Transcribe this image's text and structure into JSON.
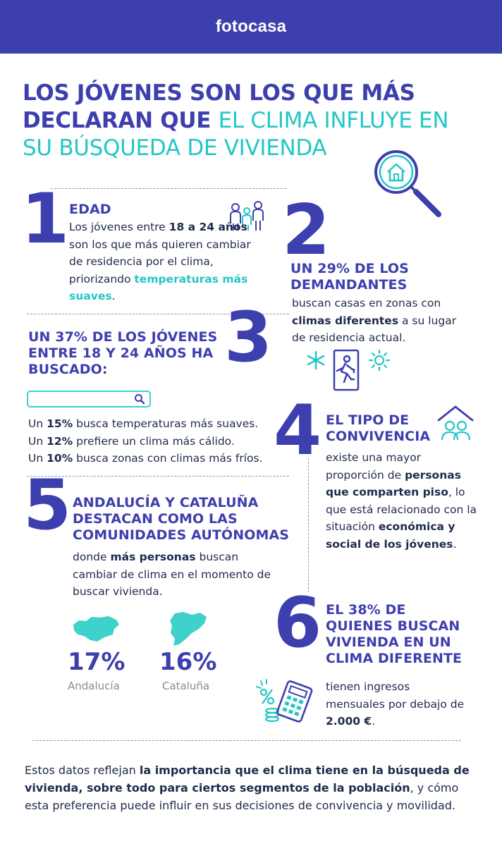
{
  "header": {
    "brand": "fotocasa"
  },
  "title": {
    "part1": "LOS JÓVENES SON LOS QUE MÁS DECLARAN QUE ",
    "part2": "EL CLIMA INFLUYE EN SU BÚSQUEDA DE VIVIENDA"
  },
  "s1": {
    "number": "1",
    "heading": "EDAD",
    "t1": "Los jóvenes entre ",
    "b1": "18 a 24 años",
    "t2": " son los que más quieren cambiar de residencia por el clima, priorizando ",
    "hl": "temperaturas más suaves",
    "t3": "."
  },
  "s2": {
    "number": "2",
    "heading": "UN 29% DE LOS DEMANDANTES",
    "t1": "buscan casas en zonas con ",
    "b1": "climas diferentes",
    "t2": " a su lugar de residencia actual."
  },
  "s3": {
    "number": "3",
    "heading": "UN 37% DE LOS JÓVENES ENTRE 18 Y 24 AÑOS HA BUSCADO:",
    "lines": [
      {
        "pre": "Un ",
        "bold": "15%",
        "post": " busca temperaturas más suaves."
      },
      {
        "pre": "Un ",
        "bold": "12%",
        "post": " prefiere un clima más cálido."
      },
      {
        "pre": "Un ",
        "bold": "10%",
        "post": " busca zonas con climas más fríos."
      }
    ]
  },
  "s4": {
    "number": "4",
    "heading": "EL TIPO DE CONVIVENCIA",
    "t1": "existe una mayor proporción de ",
    "b1": "personas que comparten piso",
    "t2": ", lo que está relacionado con la situación ",
    "b2": "económica y social de los jóvenes",
    "t3": "."
  },
  "s5": {
    "number": "5",
    "heading": "ANDALUCÍA Y CATALUÑA DESTACAN COMO LAS COMUNIDADES AUTÓNOMAS",
    "t1": "donde ",
    "b1": "más personas",
    "t2": " buscan cambiar de clima en el momento de buscar vivienda.",
    "regions": [
      {
        "pct": "17%",
        "name": "Andalucía"
      },
      {
        "pct": "16%",
        "name": "Cataluña"
      }
    ]
  },
  "s6": {
    "number": "6",
    "heading": "EL 38% DE QUIENES BUSCAN VIVIENDA EN UN CLIMA DIFERENTE",
    "t1": "tienen ingresos mensuales por debajo de ",
    "b1": "2.000 €",
    "t2": "."
  },
  "footer": {
    "t1": "Estos datos reflejan ",
    "b1": "la importancia que el clima tiene en la búsqueda de vivienda, sobre todo para ciertos segmentos de la población",
    "t2": ", y cómo esta preferencia puede influir en sus decisiones de convivencia y movilidad."
  },
  "colors": {
    "brand": "#3d3fae",
    "accent": "#24c6c6",
    "text": "#1f2b4d"
  },
  "icons": [
    "magnifier-house-icon",
    "family-icon",
    "weather-door-icon",
    "search-bar-icon",
    "shared-house-icon",
    "money-calculator-icon",
    "andalucia-map-icon",
    "cataluna-map-icon"
  ]
}
